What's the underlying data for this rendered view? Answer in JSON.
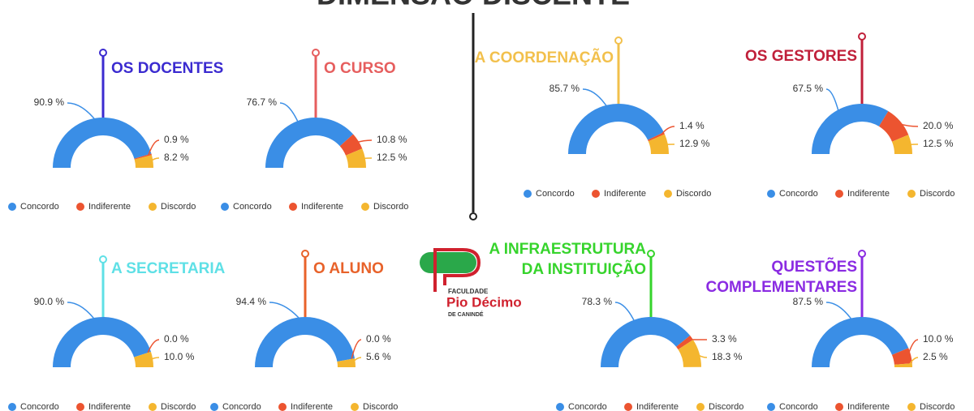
{
  "header": {
    "title": "DIMENSÃO DISCENTE"
  },
  "logo": {
    "line1": "FACULDADE",
    "line2": "Pio Décimo",
    "line3": "DE CANINDÉ"
  },
  "chart_data": [
    {
      "type": "pie",
      "title": [
        "OS DOCENTES"
      ],
      "title_color": "#3b2bd0",
      "categories": [
        "Concordo",
        "Indiferente",
        "Discordo"
      ],
      "values": [
        90.9,
        0.9,
        8.2
      ],
      "value_labels": [
        "90.9 %",
        "0.9 %",
        "8.2 %"
      ],
      "colors": [
        "#3a8ee6",
        "#ec5430",
        "#f4b62f"
      ]
    },
    {
      "type": "pie",
      "title": [
        "O CURSO"
      ],
      "title_color": "#e65e5e",
      "categories": [
        "Concordo",
        "Indiferente",
        "Discordo"
      ],
      "values": [
        76.7,
        10.8,
        12.5
      ],
      "value_labels": [
        "76.7 %",
        "10.8 %",
        "12.5 %"
      ],
      "colors": [
        "#3a8ee6",
        "#ec5430",
        "#f4b62f"
      ]
    },
    {
      "type": "pie",
      "title": [
        "A COORDENAÇÃO"
      ],
      "title_color": "#f2c04c",
      "categories": [
        "Concordo",
        "Indiferente",
        "Discordo"
      ],
      "values": [
        85.7,
        1.4,
        12.9
      ],
      "value_labels": [
        "85.7 %",
        "1.4 %",
        "12.9 %"
      ],
      "colors": [
        "#3a8ee6",
        "#ec5430",
        "#f4b62f"
      ]
    },
    {
      "type": "pie",
      "title": [
        "OS GESTORES"
      ],
      "title_color": "#c0203a",
      "categories": [
        "Concordo",
        "Indiferente",
        "Discordo"
      ],
      "values": [
        67.5,
        20.0,
        12.5
      ],
      "value_labels": [
        "67.5 %",
        "20.0 %",
        "12.5 %"
      ],
      "colors": [
        "#3a8ee6",
        "#ec5430",
        "#f4b62f"
      ]
    },
    {
      "type": "pie",
      "title": [
        "A SECRETARIA"
      ],
      "title_color": "#5fe0e6",
      "categories": [
        "Concordo",
        "Indiferente",
        "Discordo"
      ],
      "values": [
        90.0,
        0.0,
        10.0
      ],
      "value_labels": [
        "90.0 %",
        "0.0 %",
        "10.0 %"
      ],
      "colors": [
        "#3a8ee6",
        "#ec5430",
        "#f4b62f"
      ]
    },
    {
      "type": "pie",
      "title": [
        "O ALUNO"
      ],
      "title_color": "#e8622a",
      "categories": [
        "Concordo",
        "Indiferente",
        "Discordo"
      ],
      "values": [
        94.4,
        0.0,
        5.6
      ],
      "value_labels": [
        "94.4 %",
        "0.0 %",
        "5.6 %"
      ],
      "colors": [
        "#3a8ee6",
        "#ec5430",
        "#f4b62f"
      ]
    },
    {
      "type": "pie",
      "title": [
        "A INFRAESTRUTURA",
        "DA INSTITUIÇÃO"
      ],
      "title_color": "#36d42c",
      "categories": [
        "Concordo",
        "Indiferente",
        "Discordo"
      ],
      "values": [
        78.3,
        3.3,
        18.3
      ],
      "value_labels": [
        "78.3 %",
        "3.3 %",
        "18.3 %"
      ],
      "colors": [
        "#3a8ee6",
        "#ec5430",
        "#f4b62f"
      ]
    },
    {
      "type": "pie",
      "title": [
        "QUESTÕES",
        "COMPLEMENTARES"
      ],
      "title_color": "#8a2be2",
      "categories": [
        "Concordo",
        "Indiferente",
        "Discordo"
      ],
      "values": [
        87.5,
        10.0,
        2.5
      ],
      "value_labels": [
        "87.5 %",
        "10.0 %",
        "2.5 %"
      ],
      "colors": [
        "#3a8ee6",
        "#ec5430",
        "#f4b62f"
      ]
    }
  ]
}
